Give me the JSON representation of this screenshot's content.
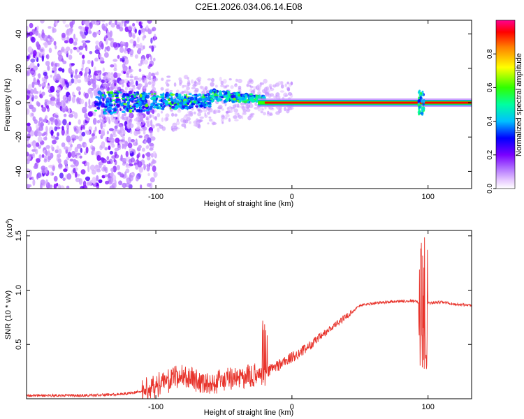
{
  "chart_data": [
    {
      "type": "heatmap",
      "title": "C2E1.2026.034.06.14.E08",
      "xlabel": "Height of straight line (km)",
      "ylabel": "Frequency (Hz)",
      "xlim": [
        -195,
        132
      ],
      "ylim": [
        -50,
        48
      ],
      "xticks": [
        -100,
        0,
        100
      ],
      "yticks": [
        -40,
        -20,
        0,
        20,
        40
      ],
      "colorbar": {
        "label": "Normalized spectral amplitude",
        "range": [
          0.0,
          1.0
        ],
        "ticks": [
          "0.0",
          "0.2",
          "0.4",
          "0.6",
          "0.8"
        ],
        "tick_values": [
          0.0,
          0.2,
          0.4,
          0.6,
          0.8
        ]
      },
      "features": {
        "carrier_frequency_hz": 0,
        "carrier_start_km": -20,
        "scatter_region_km": [
          -195,
          -110
        ],
        "scintillation_region_km": [
          -145,
          -20
        ],
        "spike_km": 95
      }
    },
    {
      "type": "line",
      "xlabel": "Height of straight line (km)",
      "ylabel": "SNR (10 * v/v)",
      "y_scale_label": "(x10",
      "y_scale_exponent": "4",
      "xlim": [
        -195,
        132
      ],
      "ylim": [
        0,
        1.55
      ],
      "xticks": [
        -100,
        0,
        100
      ],
      "yticks": [
        0.5,
        1.0,
        1.5
      ],
      "ytick_labels": [
        "0.5",
        "1.0",
        "1.5"
      ],
      "series": [
        {
          "name": "SNR",
          "color": "#e8342c",
          "x": [
            -195,
            -170,
            -150,
            -130,
            -120,
            -110,
            -100,
            -90,
            -80,
            -70,
            -60,
            -50,
            -40,
            -30,
            -20,
            -10,
            0,
            10,
            20,
            30,
            40,
            50,
            60,
            70,
            80,
            90,
            95,
            100,
            110,
            120,
            132
          ],
          "y": [
            0.03,
            0.03,
            0.03,
            0.04,
            0.05,
            0.07,
            0.12,
            0.18,
            0.21,
            0.17,
            0.14,
            0.17,
            0.19,
            0.2,
            0.24,
            0.31,
            0.38,
            0.46,
            0.56,
            0.66,
            0.76,
            0.86,
            0.88,
            0.89,
            0.9,
            0.9,
            0.88,
            0.88,
            0.89,
            0.87,
            0.86
          ]
        }
      ]
    }
  ]
}
